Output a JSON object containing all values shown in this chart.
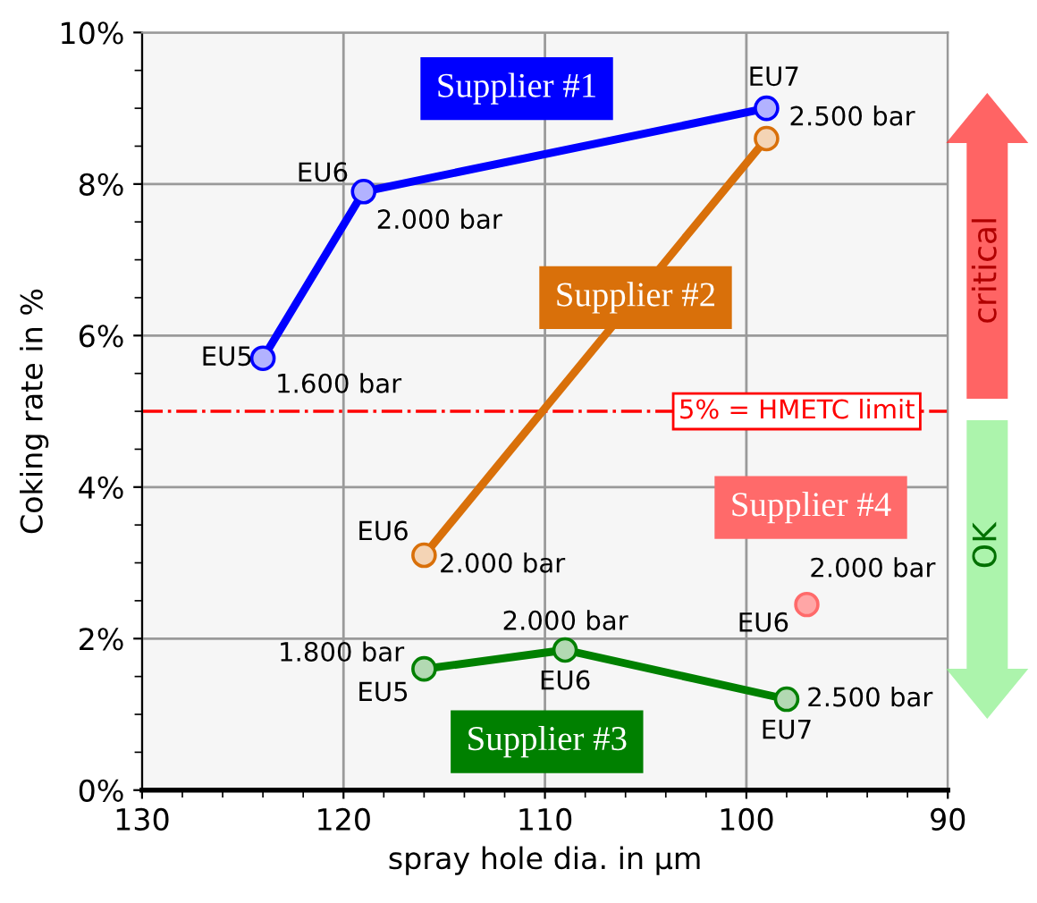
{
  "chart_data": {
    "type": "line",
    "xlabel": "spray hole dia. in µm",
    "ylabel": "Coking rate in %",
    "xlim": [
      130,
      90
    ],
    "ylim": [
      0,
      10
    ],
    "xticks": [
      130,
      120,
      110,
      100,
      90,
      {
        "value": 128,
        "label": null
      },
      {
        "value": 126,
        "label": null
      },
      {
        "value": 124,
        "label": null
      },
      {
        "value": 122,
        "label": null
      },
      {
        "value": 118,
        "label": null
      },
      {
        "value": 116,
        "label": null
      },
      {
        "value": 114,
        "label": null
      },
      {
        "value": 112,
        "label": null
      },
      {
        "value": 108,
        "label": null
      },
      {
        "value": 106,
        "label": null
      },
      {
        "value": 104,
        "label": null
      },
      {
        "value": 102,
        "label": null
      },
      {
        "value": 98,
        "label": null
      },
      {
        "value": 96,
        "label": null
      },
      {
        "value": 94,
        "label": null
      },
      {
        "value": 92,
        "label": null
      }
    ],
    "yticks": [
      {
        "value": 0,
        "label": "0%"
      },
      {
        "value": 2,
        "label": "2%"
      },
      {
        "value": 4,
        "label": "4%"
      },
      {
        "value": 6,
        "label": "6%"
      },
      {
        "value": 8,
        "label": "8%"
      },
      {
        "value": 10,
        "label": "10%"
      },
      {
        "value": 0.5,
        "label": null
      },
      {
        "value": 1,
        "label": null
      },
      {
        "value": 1.5,
        "label": null
      },
      {
        "value": 2.5,
        "label": null
      },
      {
        "value": 3,
        "label": null
      },
      {
        "value": 3.5,
        "label": null
      },
      {
        "value": 4.5,
        "label": null
      },
      {
        "value": 5,
        "label": null
      },
      {
        "value": 5.5,
        "label": null
      },
      {
        "value": 6.5,
        "label": null
      },
      {
        "value": 7,
        "label": null
      },
      {
        "value": 7.5,
        "label": null
      },
      {
        "value": 8.5,
        "label": null
      },
      {
        "value": 9,
        "label": null
      },
      {
        "value": 9.5,
        "label": null
      }
    ],
    "grid": true,
    "marker": "circle",
    "line_style": "solid",
    "series": [
      {
        "name": "Supplier #1",
        "color": "#0000ff",
        "x": [
          124,
          119,
          99
        ],
        "values": [
          5.7,
          7.9,
          9.0
        ]
      },
      {
        "name": "Supplier #2",
        "color": "#d9700a",
        "x": [
          116,
          99
        ],
        "values": [
          3.1,
          8.6
        ]
      },
      {
        "name": "Supplier #3",
        "color": "#008000",
        "x": [
          116,
          109,
          98
        ],
        "values": [
          1.6,
          1.85,
          1.2
        ]
      },
      {
        "name": "Supplier #4",
        "color": "#ff6a6a",
        "type": "scatter",
        "x": [
          97
        ],
        "values": [
          2.45
        ]
      }
    ],
    "ref_lines": [
      {
        "axis": "y",
        "value": 5,
        "label": "5% = HMETC limit",
        "color": "#ff0000",
        "line_style": "dashdot"
      }
    ],
    "annotations": [
      {
        "text": "EU5",
        "x": 124,
        "y": 5.7
      },
      {
        "text": "1.600 bar",
        "x": 124,
        "y": 5.7
      },
      {
        "text": "EU6",
        "x": 119,
        "y": 7.9
      },
      {
        "text": "2.000 bar",
        "x": 119,
        "y": 7.9
      },
      {
        "text": "EU7",
        "x": 99,
        "y": 9.0
      },
      {
        "text": "2.500 bar",
        "x": 99,
        "y": 9.0
      },
      {
        "text": "EU6",
        "x": 116,
        "y": 3.1
      },
      {
        "text": "2.000 bar",
        "x": 116,
        "y": 3.1
      },
      {
        "text": "1.800 bar",
        "x": 116,
        "y": 1.6
      },
      {
        "text": "EU5",
        "x": 116,
        "y": 1.6
      },
      {
        "text": "2.000 bar",
        "x": 109,
        "y": 1.85
      },
      {
        "text": "EU6",
        "x": 109,
        "y": 1.85
      },
      {
        "text": "2.500 bar",
        "x": 98,
        "y": 1.2
      },
      {
        "text": "EU7",
        "x": 98,
        "y": 1.2
      },
      {
        "text": "2.000 bar",
        "x": 97,
        "y": 2.45
      },
      {
        "text": "EU6",
        "x": 97,
        "y": 2.45
      },
      "critical",
      "OK"
    ]
  }
}
